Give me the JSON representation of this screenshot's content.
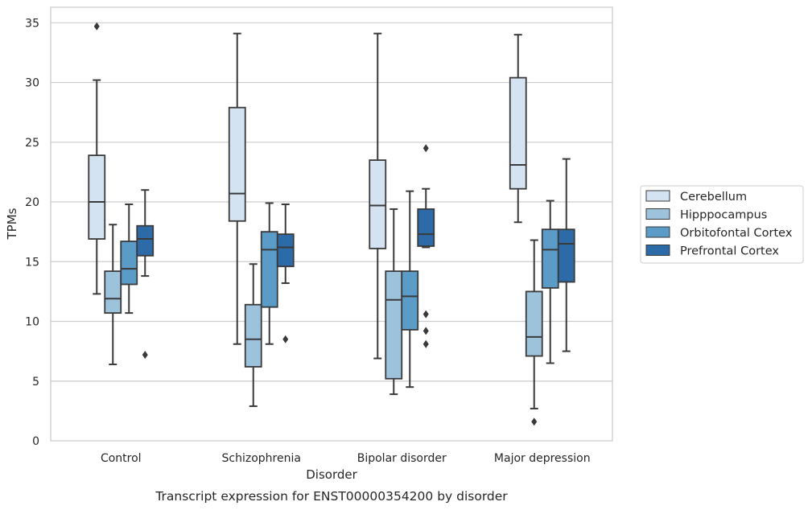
{
  "chart_data": {
    "type": "box",
    "title": "",
    "caption": "Transcript expression for ENST00000354200 by disorder",
    "xlabel": "Disorder",
    "ylabel": "TPMs",
    "ylim": [
      0,
      36.3
    ],
    "yticks": [
      0,
      5,
      10,
      15,
      20,
      25,
      30,
      35
    ],
    "grid": "horizontal",
    "legend_position": "right",
    "categories": [
      "Control",
      "Schizophrenia",
      "Bipolar disorder",
      "Major depression"
    ],
    "series": [
      {
        "name": "Cerebellum",
        "color": "#d4e3f1",
        "boxes": [
          {
            "whislo": 12.3,
            "q1": 16.9,
            "med": 20.0,
            "q3": 23.9,
            "whishi": 30.2,
            "fliers": [
              34.7
            ]
          },
          {
            "whislo": 8.1,
            "q1": 18.4,
            "med": 20.7,
            "q3": 27.9,
            "whishi": 34.1,
            "fliers": []
          },
          {
            "whislo": 6.9,
            "q1": 16.1,
            "med": 19.7,
            "q3": 23.5,
            "whishi": 34.1,
            "fliers": []
          },
          {
            "whislo": 18.3,
            "q1": 21.1,
            "med": 23.1,
            "q3": 30.4,
            "whishi": 34.0,
            "fliers": []
          }
        ]
      },
      {
        "name": "Hipppocampus",
        "color": "#9cc2dc",
        "boxes": [
          {
            "whislo": 6.4,
            "q1": 10.7,
            "med": 11.9,
            "q3": 14.2,
            "whishi": 18.1,
            "fliers": []
          },
          {
            "whislo": 2.9,
            "q1": 6.2,
            "med": 8.5,
            "q3": 11.4,
            "whishi": 14.8,
            "fliers": []
          },
          {
            "whislo": 3.9,
            "q1": 5.2,
            "med": 11.8,
            "q3": 14.2,
            "whishi": 19.4,
            "fliers": []
          },
          {
            "whislo": 2.7,
            "q1": 7.1,
            "med": 8.7,
            "q3": 12.5,
            "whishi": 16.8,
            "fliers": [
              1.6
            ]
          }
        ]
      },
      {
        "name": "Orbitofontal Cortex",
        "color": "#5a9bc8",
        "boxes": [
          {
            "whislo": 10.7,
            "q1": 13.1,
            "med": 14.4,
            "q3": 16.7,
            "whishi": 19.8,
            "fliers": []
          },
          {
            "whislo": 8.1,
            "q1": 11.2,
            "med": 16.0,
            "q3": 17.5,
            "whishi": 19.9,
            "fliers": []
          },
          {
            "whislo": 4.5,
            "q1": 9.3,
            "med": 12.1,
            "q3": 14.2,
            "whishi": 20.9,
            "fliers": []
          },
          {
            "whislo": 6.5,
            "q1": 12.8,
            "med": 16.0,
            "q3": 17.7,
            "whishi": 20.1,
            "fliers": []
          }
        ]
      },
      {
        "name": "Prefrontal Cortex",
        "color": "#2c6aa8",
        "boxes": [
          {
            "whislo": 13.8,
            "q1": 15.5,
            "med": 16.9,
            "q3": 18.0,
            "whishi": 21.0,
            "fliers": [
              7.2
            ]
          },
          {
            "whislo": 13.2,
            "q1": 14.6,
            "med": 16.2,
            "q3": 17.3,
            "whishi": 19.8,
            "fliers": [
              8.5
            ]
          },
          {
            "whislo": 16.2,
            "q1": 16.3,
            "med": 17.3,
            "q3": 19.4,
            "whishi": 21.1,
            "fliers": [
              24.5,
              10.6,
              9.2,
              8.1
            ]
          },
          {
            "whislo": 7.5,
            "q1": 13.3,
            "med": 16.5,
            "q3": 17.7,
            "whishi": 23.6,
            "fliers": []
          }
        ]
      }
    ]
  }
}
